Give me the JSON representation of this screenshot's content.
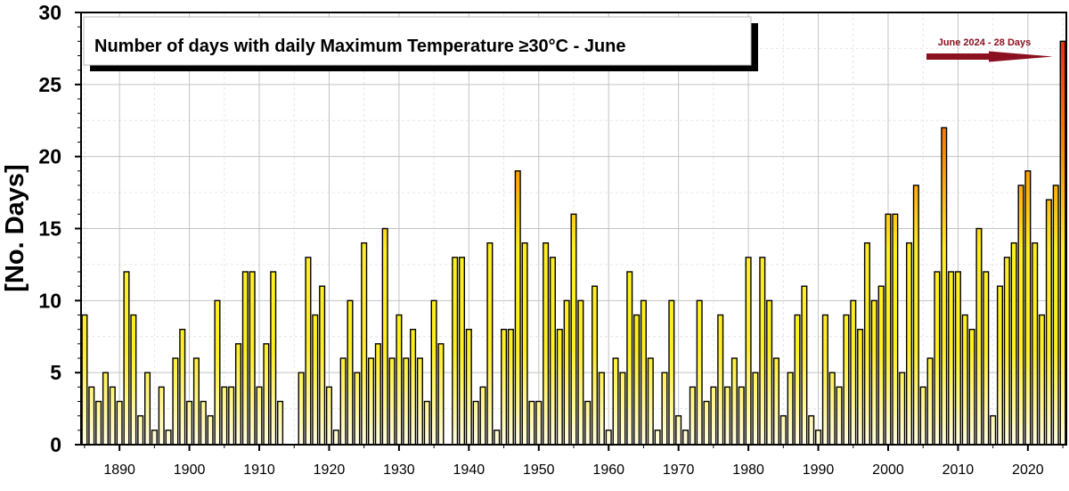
{
  "chart_data": {
    "type": "bar",
    "title": "Number of days with daily Maximum Temperature ≥30°C - June",
    "ylabel": "[No. Days]",
    "xlabel": "",
    "annotation": "June 2024 - 28 Days",
    "ylim": [
      0,
      30
    ],
    "xlim": [
      1884.5,
      2025.5
    ],
    "y_ticks": [
      "0",
      "5",
      "10",
      "15",
      "20",
      "25",
      "30"
    ],
    "x_ticks": [
      "1890",
      "1900",
      "1910",
      "1920",
      "1930",
      "1940",
      "1950",
      "1960",
      "1970",
      "1980",
      "1990",
      "2000",
      "2010",
      "2020"
    ],
    "grid": true,
    "x_start": 1885,
    "x_end": 2024,
    "values": [
      9,
      4,
      3,
      5,
      4,
      3,
      12,
      9,
      2,
      5,
      1,
      4,
      1,
      6,
      8,
      3,
      6,
      3,
      2,
      10,
      4,
      4,
      7,
      12,
      12,
      4,
      7,
      12,
      3,
      0,
      0,
      5,
      13,
      9,
      11,
      4,
      1,
      6,
      10,
      5,
      14,
      6,
      7,
      15,
      6,
      9,
      6,
      8,
      6,
      3,
      10,
      7,
      0,
      13,
      13,
      8,
      3,
      4,
      14,
      1,
      8,
      8,
      19,
      14,
      3,
      3,
      14,
      13,
      8,
      10,
      16,
      10,
      3,
      11,
      5,
      1,
      6,
      5,
      12,
      9,
      10,
      6,
      1,
      5,
      10,
      2,
      1,
      4,
      10,
      3,
      4,
      9,
      4,
      6,
      4,
      13,
      5,
      13,
      10,
      6,
      2,
      5,
      9,
      11,
      2,
      1,
      9,
      5,
      4,
      9,
      10,
      8,
      14,
      10,
      11,
      16,
      16,
      5,
      14,
      18,
      4,
      6,
      12,
      22,
      12,
      12,
      9,
      8,
      15,
      12,
      2,
      11,
      13,
      14,
      18,
      19,
      14,
      9,
      17,
      18,
      28
    ],
    "colors": {
      "low": "#fffbe0",
      "mid": "#ffee22",
      "high": "#ff8800",
      "max": "#e8190e",
      "arrow": "#8b1020"
    }
  }
}
